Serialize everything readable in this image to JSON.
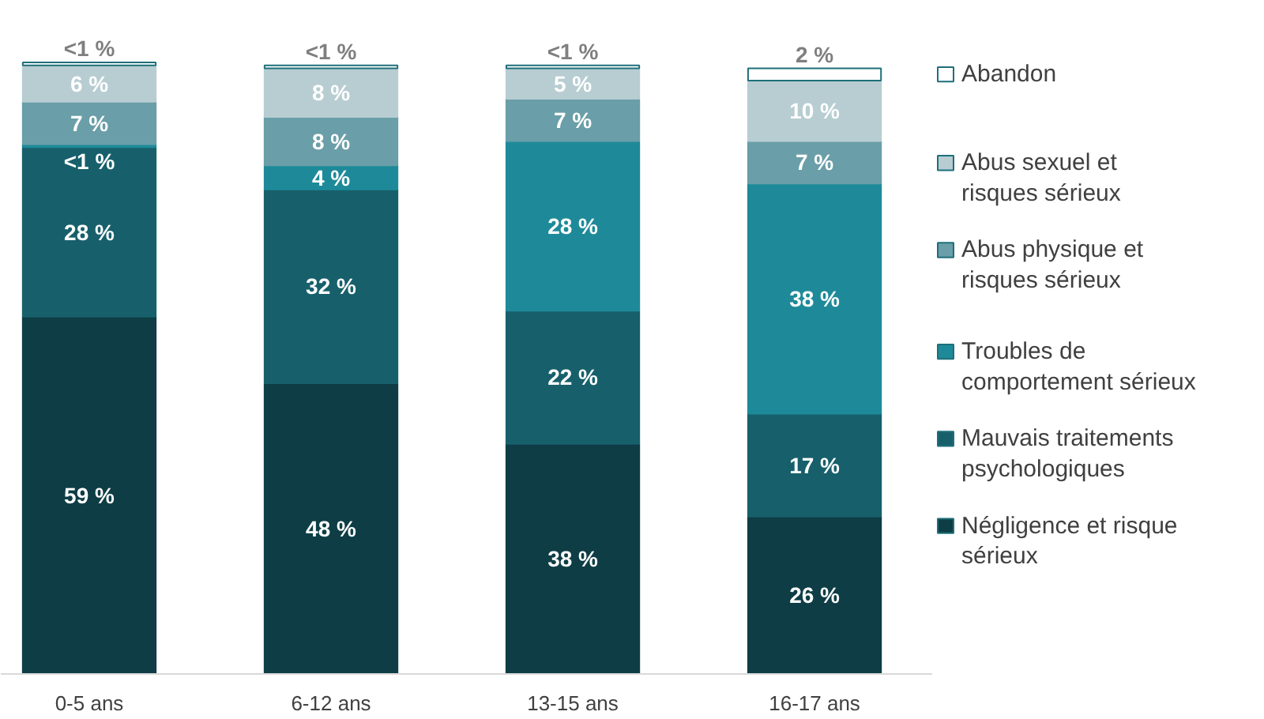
{
  "chart_data": {
    "type": "bar",
    "stacked": true,
    "categories": [
      "0-5 ans",
      "6-12 ans",
      "13-15 ans",
      "16-17 ans"
    ],
    "legend": "right",
    "grid": false,
    "series": [
      {
        "name": "Négligence et risque sérieux",
        "color": "#0e3d45",
        "values": [
          59,
          48,
          38,
          26
        ],
        "value_labels": [
          "59 %",
          "48 %",
          "38 %",
          "26 %"
        ]
      },
      {
        "name": "Mauvais traitements psychologiques",
        "color": "#17606b",
        "values": [
          28,
          32,
          22,
          17
        ],
        "value_labels": [
          "28 %",
          "32 %",
          "22 %",
          "17 %"
        ]
      },
      {
        "name": "Troubles de comportement sérieux",
        "color": "#1e8a99",
        "values": [
          0.5,
          4,
          28,
          38
        ],
        "value_labels": [
          "<1 %",
          "4 %",
          "28 %",
          "38 %"
        ]
      },
      {
        "name": "Abus physique et risques sérieux",
        "color": "#6a9ea8",
        "values": [
          7,
          8,
          7,
          7
        ],
        "value_labels": [
          "7 %",
          "8 %",
          "7 %",
          "7 %"
        ]
      },
      {
        "name": "Abus sexuel et risques sérieux",
        "color": "#b7cdd2",
        "values": [
          6,
          8,
          5,
          10
        ],
        "value_labels": [
          "6 %",
          "8 %",
          "5 %",
          "10 %"
        ]
      },
      {
        "name": "Abandon",
        "color": "#ffffff",
        "values": [
          0.5,
          0.5,
          0.5,
          2
        ],
        "value_labels": [
          "<1 %",
          "<1 %",
          "<1 %",
          "2 %"
        ]
      }
    ]
  }
}
